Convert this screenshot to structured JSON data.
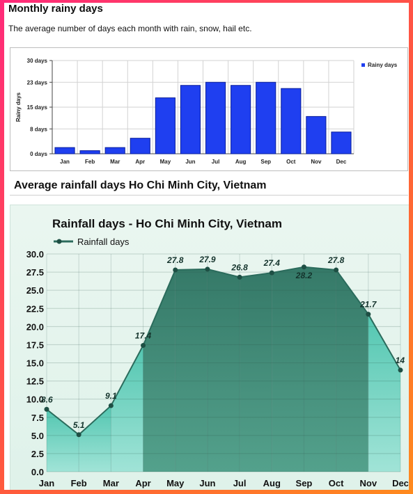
{
  "section1": {
    "title": "Monthly rainy days",
    "subtitle": "The average number of days each month with rain, snow, hail etc."
  },
  "section2": {
    "title": "Average rainfall days Ho Chi Minh City, Vietnam"
  },
  "colors": {
    "bar_fill": "#1f3ff0",
    "bar_stroke": "#0a1f9a",
    "area_light": "#7fd6c6",
    "area_dark": "#2f7a68",
    "line": "#2b6b5c",
    "marker": "#1e4f44"
  },
  "chart_data": [
    {
      "type": "bar",
      "categories": [
        "Jan",
        "Feb",
        "Mar",
        "Apr",
        "May",
        "Jun",
        "Jul",
        "Aug",
        "Sep",
        "Oct",
        "Nov",
        "Dec"
      ],
      "series": [
        {
          "name": "Rainy days",
          "values": [
            2,
            1,
            2,
            5,
            18,
            22,
            23,
            22,
            23,
            21,
            12,
            7
          ]
        }
      ],
      "ylabel": "Rainy days",
      "ylim": [
        0,
        30
      ],
      "yticks": [
        0,
        8,
        15,
        23,
        30
      ],
      "ytick_labels": [
        "0 days",
        "8 days",
        "15 days",
        "23 days",
        "30 days"
      ],
      "grid": true,
      "legend": "right"
    },
    {
      "type": "area",
      "title": "Rainfall days - Ho Chi Minh City, Vietnam",
      "categories": [
        "Jan",
        "Feb",
        "Mar",
        "Apr",
        "May",
        "Jun",
        "Jul",
        "Aug",
        "Sep",
        "Oct",
        "Nov",
        "Dec"
      ],
      "series": [
        {
          "name": "Rainfall days",
          "values": [
            8.6,
            5.1,
            9.1,
            17.4,
            27.8,
            27.9,
            26.8,
            27.4,
            28.2,
            27.8,
            21.7,
            14
          ],
          "labels": [
            "8.6",
            "5.1",
            "9.1",
            "17.4",
            "27.8",
            "27.9",
            "26.8",
            "27.4",
            "28.2",
            "27.8",
            "21.7",
            "14"
          ]
        }
      ],
      "ylim": [
        0,
        30
      ],
      "yticks": [
        0,
        2.5,
        5,
        7.5,
        10,
        12.5,
        15,
        17.5,
        20,
        22.5,
        25,
        27.5,
        30
      ],
      "ytick_labels": [
        "0.0",
        "2.5",
        "5.0",
        "7.5",
        "10.0",
        "12.5",
        "15.0",
        "17.5",
        "20.0",
        "22.5",
        "25.0",
        "27.5",
        "30.0"
      ],
      "grid": true,
      "legend": "top-left"
    }
  ]
}
